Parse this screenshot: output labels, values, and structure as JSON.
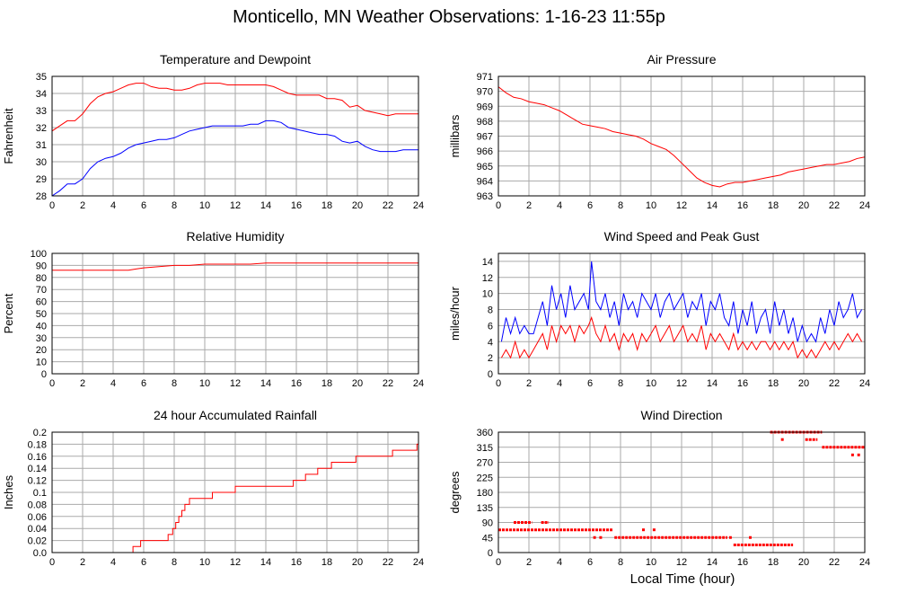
{
  "title": "Monticello, MN Weather Observations: 1-16-23 11:55p",
  "xlabel": "Local Time (hour)",
  "colors": {
    "red": "#ff0000",
    "blue": "#0000ff",
    "grid": "#aaaaaa"
  },
  "chart_data": [
    {
      "type": "line",
      "title": "Temperature and Dewpoint",
      "ylabel": "Fahrenheit",
      "xlim": [
        0,
        24
      ],
      "ylim": [
        28,
        35
      ],
      "xticks": [
        0,
        2,
        4,
        6,
        8,
        10,
        12,
        14,
        16,
        18,
        20,
        22,
        24
      ],
      "yticks": [
        28,
        29,
        30,
        31,
        32,
        33,
        34,
        35
      ],
      "grid": true,
      "series": [
        {
          "color": "#ff0000",
          "x": [
            0,
            0.5,
            1,
            1.5,
            2,
            2.5,
            3,
            3.5,
            4,
            4.5,
            5,
            5.5,
            6,
            6.5,
            7,
            7.5,
            8,
            8.5,
            9,
            9.5,
            10,
            10.5,
            11,
            11.5,
            12,
            12.5,
            13,
            13.5,
            14,
            14.5,
            15,
            15.5,
            16,
            16.5,
            17,
            17.5,
            18,
            18.5,
            19,
            19.5,
            20,
            20.5,
            21,
            21.5,
            22,
            22.5,
            23,
            23.5,
            24
          ],
          "y": [
            31.8,
            32.1,
            32.4,
            32.4,
            32.8,
            33.4,
            33.8,
            34.0,
            34.1,
            34.3,
            34.5,
            34.6,
            34.6,
            34.4,
            34.3,
            34.3,
            34.2,
            34.2,
            34.3,
            34.5,
            34.6,
            34.6,
            34.6,
            34.5,
            34.5,
            34.5,
            34.5,
            34.5,
            34.5,
            34.4,
            34.2,
            34.0,
            33.9,
            33.9,
            33.9,
            33.9,
            33.7,
            33.7,
            33.6,
            33.2,
            33.3,
            33.0,
            32.9,
            32.8,
            32.7,
            32.8,
            32.8,
            32.8,
            32.8
          ]
        },
        {
          "color": "#0000ff",
          "x": [
            0,
            0.5,
            1,
            1.5,
            2,
            2.5,
            3,
            3.5,
            4,
            4.5,
            5,
            5.5,
            6,
            6.5,
            7,
            7.5,
            8,
            8.5,
            9,
            9.5,
            10,
            10.5,
            11,
            11.5,
            12,
            12.5,
            13,
            13.5,
            14,
            14.5,
            15,
            15.5,
            16,
            16.5,
            17,
            17.5,
            18,
            18.5,
            19,
            19.5,
            20,
            20.5,
            21,
            21.5,
            22,
            22.5,
            23,
            23.5,
            24
          ],
          "y": [
            28.0,
            28.3,
            28.7,
            28.7,
            29.0,
            29.6,
            30.0,
            30.2,
            30.3,
            30.5,
            30.8,
            31.0,
            31.1,
            31.2,
            31.3,
            31.3,
            31.4,
            31.6,
            31.8,
            31.9,
            32.0,
            32.1,
            32.1,
            32.1,
            32.1,
            32.1,
            32.2,
            32.2,
            32.4,
            32.4,
            32.3,
            32.0,
            31.9,
            31.8,
            31.7,
            31.6,
            31.6,
            31.5,
            31.2,
            31.1,
            31.2,
            30.9,
            30.7,
            30.6,
            30.6,
            30.6,
            30.7,
            30.7,
            30.7
          ]
        }
      ]
    },
    {
      "type": "line",
      "title": "Air Pressure",
      "ylabel": "millibars",
      "xlim": [
        0,
        24
      ],
      "ylim": [
        963,
        971
      ],
      "xticks": [
        0,
        2,
        4,
        6,
        8,
        10,
        12,
        14,
        16,
        18,
        20,
        22,
        24
      ],
      "yticks": [
        963,
        964,
        965,
        966,
        967,
        968,
        969,
        970,
        971
      ],
      "grid": true,
      "series": [
        {
          "color": "#ff0000",
          "x": [
            0,
            0.5,
            1,
            1.5,
            2,
            2.5,
            3,
            3.5,
            4,
            4.5,
            5,
            5.5,
            6,
            6.5,
            7,
            7.5,
            8,
            8.5,
            9,
            9.5,
            10,
            10.5,
            11,
            11.5,
            12,
            12.5,
            13,
            13.5,
            14,
            14.5,
            15,
            15.5,
            16,
            16.5,
            17,
            17.5,
            18,
            18.5,
            19,
            19.5,
            20,
            20.5,
            21,
            21.5,
            22,
            22.5,
            23,
            23.5,
            24
          ],
          "y": [
            970.3,
            969.9,
            969.6,
            969.5,
            969.3,
            969.2,
            969.1,
            968.9,
            968.7,
            968.4,
            968.1,
            967.8,
            967.7,
            967.6,
            967.5,
            967.3,
            967.2,
            967.1,
            967.0,
            966.8,
            966.5,
            966.3,
            966.1,
            965.7,
            965.2,
            964.7,
            964.2,
            963.9,
            963.7,
            963.6,
            963.8,
            963.9,
            963.9,
            964.0,
            964.1,
            964.2,
            964.3,
            964.4,
            964.6,
            964.7,
            964.8,
            964.9,
            965.0,
            965.1,
            965.1,
            965.2,
            965.3,
            965.5,
            965.6
          ]
        }
      ]
    },
    {
      "type": "line",
      "title": "Relative Humidity",
      "ylabel": "Percent",
      "xlim": [
        0,
        24
      ],
      "ylim": [
        0,
        100
      ],
      "xticks": [
        0,
        2,
        4,
        6,
        8,
        10,
        12,
        14,
        16,
        18,
        20,
        22,
        24
      ],
      "yticks": [
        0,
        10,
        20,
        30,
        40,
        50,
        60,
        70,
        80,
        90,
        100
      ],
      "grid": true,
      "series": [
        {
          "color": "#ff0000",
          "x": [
            0,
            1,
            2,
            3,
            4,
            5,
            5.5,
            6,
            7,
            8,
            9,
            10,
            11,
            12,
            13,
            14,
            15,
            16,
            17,
            18,
            19,
            20,
            21,
            22,
            23,
            24
          ],
          "y": [
            86,
            86,
            86,
            86,
            86,
            86,
            87,
            88,
            89,
            90,
            90,
            91,
            91,
            91,
            91,
            92,
            92,
            92,
            92,
            92,
            92,
            92,
            92,
            92,
            92,
            92
          ]
        }
      ]
    },
    {
      "type": "line",
      "title": "Wind Speed and Peak Gust",
      "ylabel": "miles/hour",
      "xlim": [
        0,
        24
      ],
      "ylim": [
        0,
        15
      ],
      "xticks": [
        0,
        2,
        4,
        6,
        8,
        10,
        12,
        14,
        16,
        18,
        20,
        22,
        24
      ],
      "yticks": [
        0,
        2,
        4,
        6,
        8,
        10,
        12,
        14
      ],
      "grid": true,
      "series": [
        {
          "color": "#0000ff",
          "x": [
            0.2,
            0.5,
            0.8,
            1.1,
            1.4,
            1.7,
            2,
            2.3,
            2.6,
            2.9,
            3.2,
            3.5,
            3.8,
            4.1,
            4.4,
            4.7,
            5,
            5.3,
            5.6,
            5.9,
            6.1,
            6.4,
            6.7,
            7,
            7.3,
            7.6,
            7.9,
            8.2,
            8.5,
            8.8,
            9.1,
            9.4,
            9.7,
            10,
            10.3,
            10.6,
            10.9,
            11.2,
            11.5,
            11.8,
            12.1,
            12.4,
            12.7,
            13,
            13.3,
            13.6,
            13.9,
            14.2,
            14.5,
            14.8,
            15.1,
            15.4,
            15.7,
            16,
            16.3,
            16.6,
            16.9,
            17.2,
            17.5,
            17.8,
            18.1,
            18.4,
            18.7,
            19,
            19.3,
            19.6,
            19.9,
            20.2,
            20.5,
            20.8,
            21.1,
            21.4,
            21.7,
            22,
            22.3,
            22.6,
            22.9,
            23.2,
            23.5,
            23.8
          ],
          "y": [
            4,
            7,
            5,
            7,
            5,
            6,
            5,
            5,
            7,
            9,
            6,
            11,
            8,
            10,
            7,
            11,
            8,
            9,
            10,
            8,
            14,
            9,
            8,
            10,
            7,
            9,
            6,
            10,
            8,
            9,
            7,
            10,
            9,
            8,
            10,
            7,
            9,
            10,
            8,
            9,
            10,
            7,
            9,
            8,
            10,
            6,
            9,
            8,
            10,
            7,
            6,
            9,
            5,
            8,
            6,
            9,
            5,
            7,
            8,
            5,
            9,
            6,
            8,
            5,
            7,
            4,
            6,
            4,
            5,
            4,
            7,
            5,
            8,
            6,
            9,
            7,
            8,
            10,
            7,
            8
          ]
        },
        {
          "color": "#ff0000",
          "x": [
            0.2,
            0.5,
            0.8,
            1.1,
            1.4,
            1.7,
            2,
            2.3,
            2.6,
            2.9,
            3.2,
            3.5,
            3.8,
            4.1,
            4.4,
            4.7,
            5,
            5.3,
            5.6,
            5.9,
            6.1,
            6.4,
            6.7,
            7,
            7.3,
            7.6,
            7.9,
            8.2,
            8.5,
            8.8,
            9.1,
            9.4,
            9.7,
            10,
            10.3,
            10.6,
            10.9,
            11.2,
            11.5,
            11.8,
            12.1,
            12.4,
            12.7,
            13,
            13.3,
            13.6,
            13.9,
            14.2,
            14.5,
            14.8,
            15.1,
            15.4,
            15.7,
            16,
            16.3,
            16.6,
            16.9,
            17.2,
            17.5,
            17.8,
            18.1,
            18.4,
            18.7,
            19,
            19.3,
            19.6,
            19.9,
            20.2,
            20.5,
            20.8,
            21.1,
            21.4,
            21.7,
            22,
            22.3,
            22.6,
            22.9,
            23.2,
            23.5,
            23.8
          ],
          "y": [
            2,
            3,
            2,
            4,
            2,
            3,
            2,
            3,
            4,
            5,
            3,
            6,
            4,
            6,
            5,
            6,
            4,
            6,
            5,
            6,
            7,
            5,
            4,
            6,
            4,
            5,
            3,
            5,
            4,
            5,
            3,
            5,
            4,
            5,
            6,
            4,
            5,
            6,
            4,
            5,
            6,
            4,
            5,
            4,
            6,
            3,
            5,
            4,
            5,
            4,
            3,
            5,
            3,
            4,
            3,
            4,
            3,
            4,
            4,
            3,
            4,
            3,
            4,
            3,
            4,
            2,
            3,
            2,
            3,
            2,
            3,
            4,
            3,
            4,
            3,
            4,
            5,
            4,
            5,
            4
          ]
        }
      ]
    },
    {
      "type": "line",
      "title": "24 hour Accumulated Rainfall",
      "ylabel": "Inches",
      "xlim": [
        0,
        24
      ],
      "ylim": [
        0,
        0.2
      ],
      "xticks": [
        0,
        2,
        4,
        6,
        8,
        10,
        12,
        14,
        16,
        18,
        20,
        22,
        24
      ],
      "yticks": [
        0,
        0.02,
        0.04,
        0.06,
        0.08,
        0.1,
        0.12,
        0.14,
        0.16,
        0.18,
        0.2
      ],
      "ytick_labels": [
        "0.0",
        "0.02",
        "0.04",
        "0.06",
        "0.08",
        "0.1",
        "0.12",
        "0.14",
        "0.16",
        "0.18",
        "0.2"
      ],
      "grid": true,
      "series": [
        {
          "color": "#ff0000",
          "step": true,
          "x": [
            0,
            5.1,
            5.3,
            5.8,
            7.2,
            7.6,
            7.9,
            8.1,
            8.3,
            8.5,
            8.7,
            9.0,
            9.6,
            10.5,
            12.0,
            13.5,
            15.8,
            16.6,
            17.4,
            18.3,
            19.1,
            19.9,
            20.4,
            22.3,
            23.9,
            24
          ],
          "y": [
            0,
            0,
            0.01,
            0.02,
            0.02,
            0.03,
            0.04,
            0.05,
            0.06,
            0.07,
            0.08,
            0.09,
            0.09,
            0.1,
            0.11,
            0.11,
            0.12,
            0.13,
            0.14,
            0.15,
            0.15,
            0.16,
            0.16,
            0.17,
            0.18,
            0.18
          ]
        }
      ]
    },
    {
      "type": "scatter",
      "title": "Wind Direction",
      "ylabel": "degrees",
      "xlim": [
        0,
        24
      ],
      "ylim": [
        0,
        360
      ],
      "xticks": [
        0,
        2,
        4,
        6,
        8,
        10,
        12,
        14,
        16,
        18,
        20,
        22,
        24
      ],
      "yticks": [
        0,
        45,
        90,
        135,
        180,
        225,
        270,
        315,
        360
      ],
      "grid": true,
      "segments": [
        {
          "color": "#ff0000",
          "x_start": 0.0,
          "x_end": 7.5,
          "y": 68
        },
        {
          "color": "#ff0000",
          "x_start": 1.0,
          "x_end": 2.2,
          "y": 90
        },
        {
          "color": "#ff0000",
          "x_start": 2.8,
          "x_end": 3.3,
          "y": 90
        },
        {
          "color": "#ff0000",
          "x_start": 7.6,
          "x_end": 15.0,
          "y": 45
        },
        {
          "color": "#ff0000",
          "x_start": 15.4,
          "x_end": 19.3,
          "y": 23
        },
        {
          "color": "#ff0000",
          "x_start": 17.8,
          "x_end": 21.2,
          "y": 360
        },
        {
          "color": "#ff0000",
          "x_start": 20.1,
          "x_end": 20.9,
          "y": 338
        },
        {
          "color": "#ff0000",
          "x_start": 21.2,
          "x_end": 24.0,
          "y": 315
        }
      ],
      "points": [
        {
          "color": "#ff0000",
          "x": [
            6.3,
            6.7,
            9.5,
            10.2,
            15.2,
            16.5
          ],
          "y": [
            45,
            45,
            68,
            68,
            45,
            45
          ]
        },
        {
          "color": "#ff0000",
          "x": [
            18.6,
            23.2,
            23.6
          ],
          "y": [
            338,
            292,
            292
          ]
        }
      ]
    }
  ]
}
